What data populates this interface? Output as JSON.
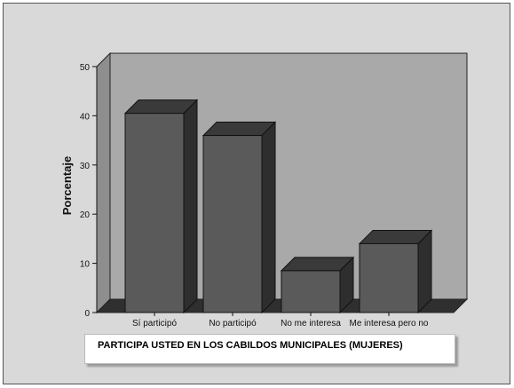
{
  "chart_data": {
    "type": "bar",
    "title": "PARTICIPA USTED EN LOS CABILDOS MUNICIPALES (MUJERES)",
    "xlabel": "",
    "ylabel": "Porcentaje",
    "categories": [
      "Sí participó",
      "No participó",
      "No me interesa",
      "Me interesa pero no"
    ],
    "values": [
      40.5,
      36,
      8.5,
      14
    ],
    "ylim": [
      0,
      50
    ],
    "yticks": [
      0,
      10,
      20,
      30,
      40,
      50
    ],
    "grid": false,
    "style": "3d",
    "colors": {
      "bar_front": "#5a5a5a",
      "bar_top": "#3a3a3a",
      "bar_side": "#2e2e2e",
      "plot_back": "#a9a9a9",
      "plot_floor": "#2f2f2f",
      "plot_wall": "#8e8e8e",
      "frame_bg": "#d9d9d9"
    }
  }
}
